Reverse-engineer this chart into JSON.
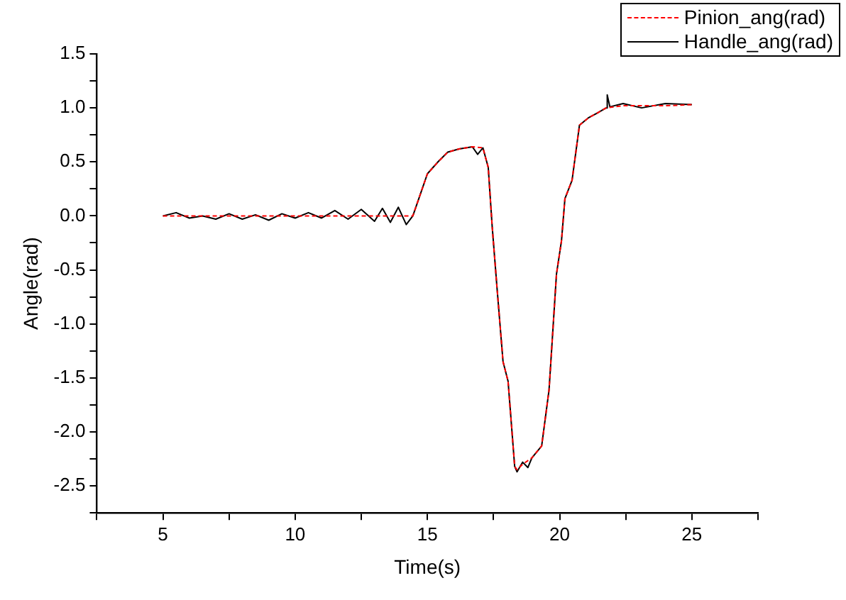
{
  "chart_data": {
    "type": "line",
    "xlabel": "Time(s)",
    "ylabel": "Angle(rad)",
    "xlim": [
      2.5,
      27.5
    ],
    "xticks": [
      {
        "value": 2.5,
        "label": null
      },
      5,
      {
        "value": 7.5,
        "label": null
      },
      10,
      {
        "value": 12.5,
        "label": null
      },
      15,
      {
        "value": 17.5,
        "label": null
      },
      20,
      {
        "value": 22.5,
        "label": null
      },
      25,
      {
        "value": 27.5,
        "label": null
      }
    ],
    "ylim": [
      -2.75,
      1.5
    ],
    "yticks": [
      {
        "value": -2.75,
        "label": null
      },
      -2.5,
      {
        "value": -2.25,
        "label": null
      },
      {
        "value": -2,
        "label": "-2.0"
      },
      {
        "value": -1.75,
        "label": null
      },
      -1.5,
      {
        "value": -1.25,
        "label": null
      },
      {
        "value": -1,
        "label": "-1.0"
      },
      {
        "value": -0.75,
        "label": null
      },
      -0.5,
      {
        "value": -0.25,
        "label": null
      },
      {
        "value": 0,
        "label": "0.0"
      },
      {
        "value": 0.25,
        "label": null
      },
      0.5,
      {
        "value": 0.75,
        "label": null
      },
      {
        "value": 1,
        "label": "1.0"
      },
      {
        "value": 1.25,
        "label": null
      },
      1.5
    ],
    "grid": false,
    "legend": "top right",
    "marker": "none",
    "series": [
      {
        "name": "Pinion_ang(rad)",
        "color": "#ff0000",
        "line_style": "dashed",
        "x": [
          5,
          6,
          7,
          8,
          9,
          10,
          11,
          12,
          13,
          14,
          14.45,
          15,
          15.4,
          15.77,
          16.2,
          16.7,
          17.1,
          17.3,
          17.45,
          17.63,
          17.86,
          18.05,
          18.3,
          18.39,
          18.6,
          18.95,
          19.32,
          19.6,
          19.88,
          20.07,
          20.2,
          20.47,
          20.75,
          21.1,
          21.4,
          21.76,
          22.4,
          23.1,
          24,
          25
        ],
        "values": [
          0,
          0,
          0,
          0,
          0,
          0,
          0,
          0,
          0,
          0,
          0,
          0.39,
          0.5,
          0.59,
          0.62,
          0.64,
          0.63,
          0.45,
          -0.1,
          -0.66,
          -1.35,
          -1.53,
          -2.32,
          -2.35,
          -2.3,
          -2.24,
          -2.13,
          -1.61,
          -0.54,
          -0.23,
          0.16,
          0.33,
          0.84,
          0.91,
          0.95,
          1,
          1.02,
          1.02,
          1.02,
          1.03
        ]
      },
      {
        "name": "Handle_ang(rad)",
        "color": "#000000",
        "line_style": "solid",
        "x": [
          5,
          5.5,
          6,
          6.5,
          7,
          7.5,
          8,
          8.5,
          9,
          9.5,
          10,
          10.5,
          11,
          11.5,
          12,
          12.5,
          13,
          13.3,
          13.6,
          13.9,
          14.2,
          14.45,
          15,
          15.4,
          15.77,
          16.2,
          16.7,
          16.9,
          17.1,
          17.3,
          17.45,
          17.63,
          17.86,
          18.05,
          18.3,
          18.39,
          18.6,
          18.8,
          18.95,
          19.32,
          19.6,
          19.88,
          20.07,
          20.2,
          20.47,
          20.75,
          21.1,
          21.4,
          21.76,
          21.8,
          21.9,
          22.4,
          23.1,
          24,
          25
        ],
        "values": [
          0,
          0.03,
          -0.02,
          0,
          -0.03,
          0.02,
          -0.03,
          0.01,
          -0.04,
          0.02,
          -0.02,
          0.03,
          -0.02,
          0.05,
          -0.03,
          0.06,
          -0.05,
          0.07,
          -0.06,
          0.08,
          -0.08,
          0,
          0.39,
          0.5,
          0.59,
          0.62,
          0.64,
          0.57,
          0.63,
          0.45,
          -0.1,
          -0.66,
          -1.35,
          -1.53,
          -2.32,
          -2.37,
          -2.28,
          -2.33,
          -2.24,
          -2.13,
          -1.61,
          -0.54,
          -0.23,
          0.16,
          0.33,
          0.84,
          0.91,
          0.95,
          1,
          1.12,
          1.01,
          1.04,
          1,
          1.04,
          1.03
        ]
      }
    ]
  }
}
